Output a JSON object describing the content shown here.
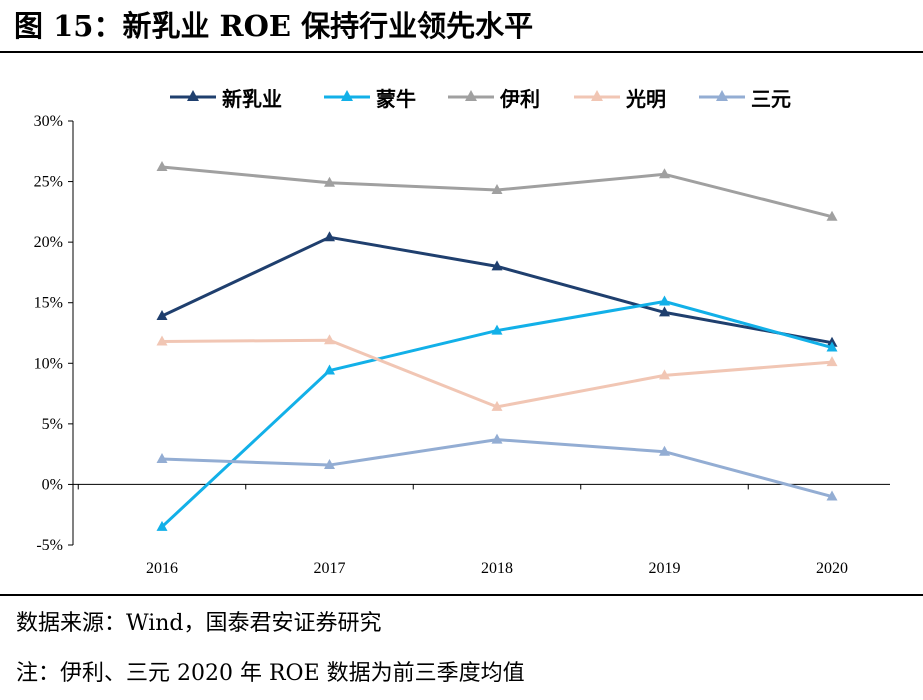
{
  "title": "图 15：新乳业 ROE 保持行业领先水平",
  "source_note": "数据来源：Wind，国泰君安证券研究",
  "footnote": "注：伊利、三元 2020 年 ROE 数据为前三季度均值",
  "chart_data": {
    "type": "line",
    "categories": [
      "2016",
      "2017",
      "2018",
      "2019",
      "2020"
    ],
    "ylim": [
      -5,
      30
    ],
    "yticks": [
      -5,
      0,
      5,
      10,
      15,
      20,
      25,
      30
    ],
    "ytick_labels": [
      "-5%",
      "0%",
      "5%",
      "10%",
      "15%",
      "20%",
      "25%",
      "30%"
    ],
    "grid": false,
    "legend_position": "top",
    "marker": "triangle",
    "series": [
      {
        "name": "新乳业",
        "color": "#1f3f6e",
        "values": [
          13.9,
          20.4,
          18.0,
          14.2,
          11.7
        ]
      },
      {
        "name": "蒙牛",
        "color": "#12b0e8",
        "values": [
          -3.5,
          9.4,
          12.7,
          15.1,
          11.3
        ]
      },
      {
        "name": "伊利",
        "color": "#a0a0a0",
        "values": [
          26.2,
          24.9,
          24.3,
          25.6,
          22.1
        ]
      },
      {
        "name": "光明",
        "color": "#f1c6b4",
        "values": [
          11.8,
          11.9,
          6.4,
          9.0,
          10.1
        ]
      },
      {
        "name": "三元",
        "color": "#93add3",
        "values": [
          2.1,
          1.6,
          3.7,
          2.7,
          -1.0
        ]
      }
    ]
  }
}
